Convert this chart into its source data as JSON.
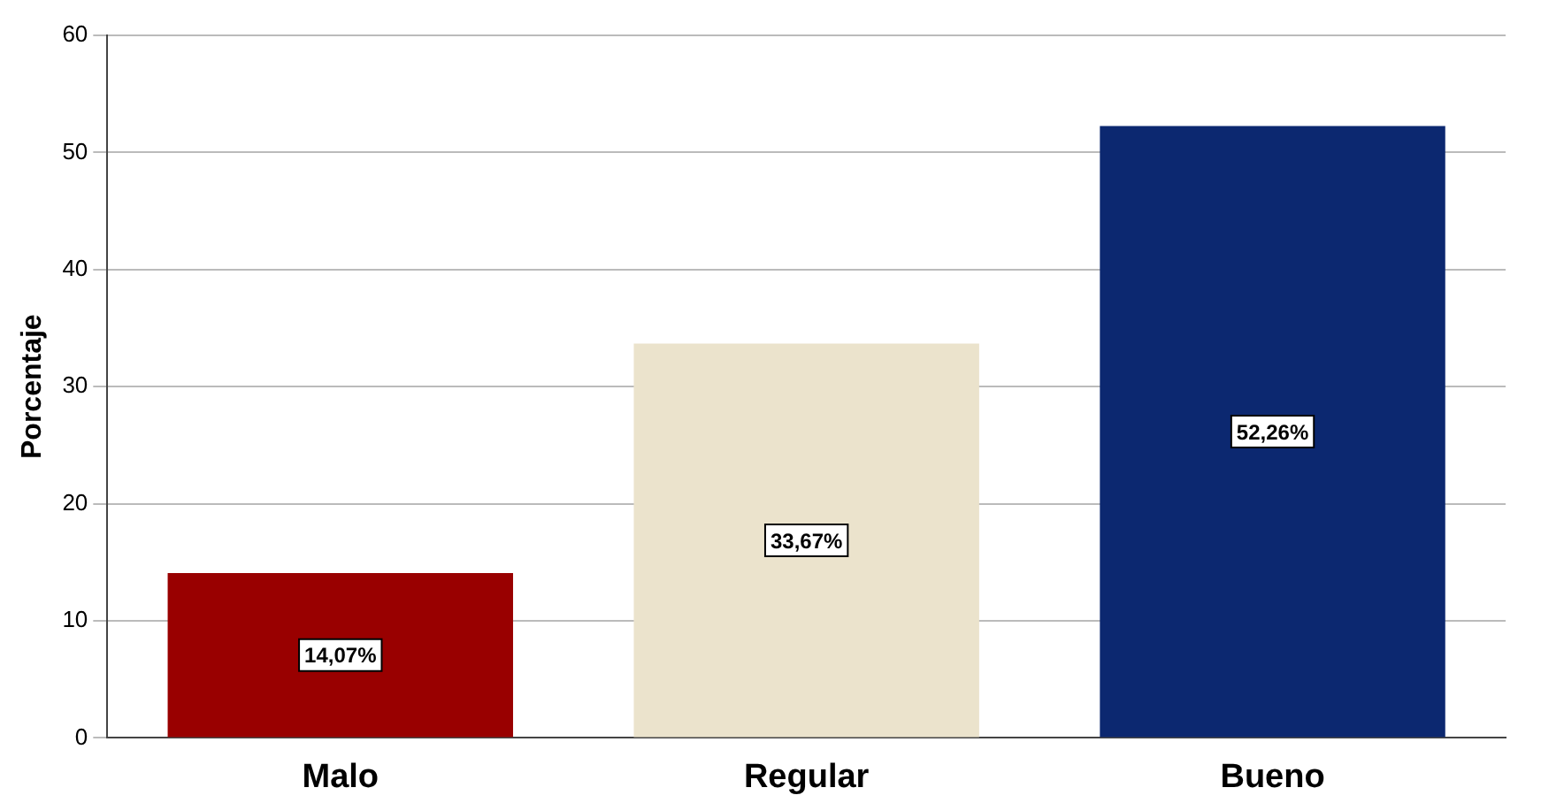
{
  "chart_data": {
    "type": "bar",
    "ylabel": "Porcentaje",
    "categories": [
      "Malo",
      "Regular",
      "Bueno"
    ],
    "values": [
      14.07,
      33.67,
      52.26
    ],
    "colors": [
      "#990000",
      "#ebe3cc",
      "#0c2870"
    ],
    "value_labels": [
      "14,07%",
      "33,67%",
      "52,26%"
    ],
    "ylim": [
      0,
      60
    ],
    "yticks": [
      0,
      10,
      20,
      30,
      40,
      50,
      60
    ],
    "grid": "y",
    "legend": false
  }
}
